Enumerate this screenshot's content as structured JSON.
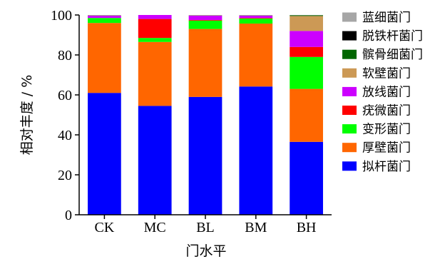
{
  "chart_data": {
    "type": "bar",
    "stacked": true,
    "xlabel": "门水平",
    "ylabel": "相对丰度 / %",
    "ylim": [
      0,
      100
    ],
    "yticks": [
      0,
      20,
      40,
      60,
      80,
      100
    ],
    "categories": [
      "CK",
      "MC",
      "BL",
      "BM",
      "BH"
    ],
    "legend_position": "right",
    "series": [
      {
        "name": "拟杆菌门",
        "color": "#0000FF",
        "values": [
          61,
          54.5,
          59,
          64.2,
          36.5
        ]
      },
      {
        "name": "厚壁菌门",
        "color": "#FF6600",
        "values": [
          35,
          32,
          34,
          31.5,
          26.5
        ]
      },
      {
        "name": "变形菌门",
        "color": "#00FF00",
        "values": [
          2.5,
          2,
          4.2,
          2.5,
          16
        ]
      },
      {
        "name": "疣微菌门",
        "color": "#FF0000",
        "values": [
          0,
          9.5,
          0.3,
          0.3,
          5
        ]
      },
      {
        "name": "放线菌门",
        "color": "#CC00FF",
        "values": [
          1.2,
          2,
          2.2,
          1.2,
          8
        ]
      },
      {
        "name": "软壁菌门",
        "color": "#CC9955",
        "values": [
          0.1,
          0,
          0.1,
          0.1,
          7.5
        ]
      },
      {
        "name": "髌骨细菌门",
        "color": "#006600",
        "values": [
          0.1,
          0,
          0.1,
          0.1,
          0.4
        ]
      },
      {
        "name": "脱铁杆菌门",
        "color": "#000000",
        "values": [
          0,
          0,
          0,
          0,
          0
        ]
      },
      {
        "name": "蓝细菌门",
        "color": "#A6A6A6",
        "values": [
          0.1,
          0,
          0.1,
          0.1,
          0.1
        ]
      }
    ]
  }
}
